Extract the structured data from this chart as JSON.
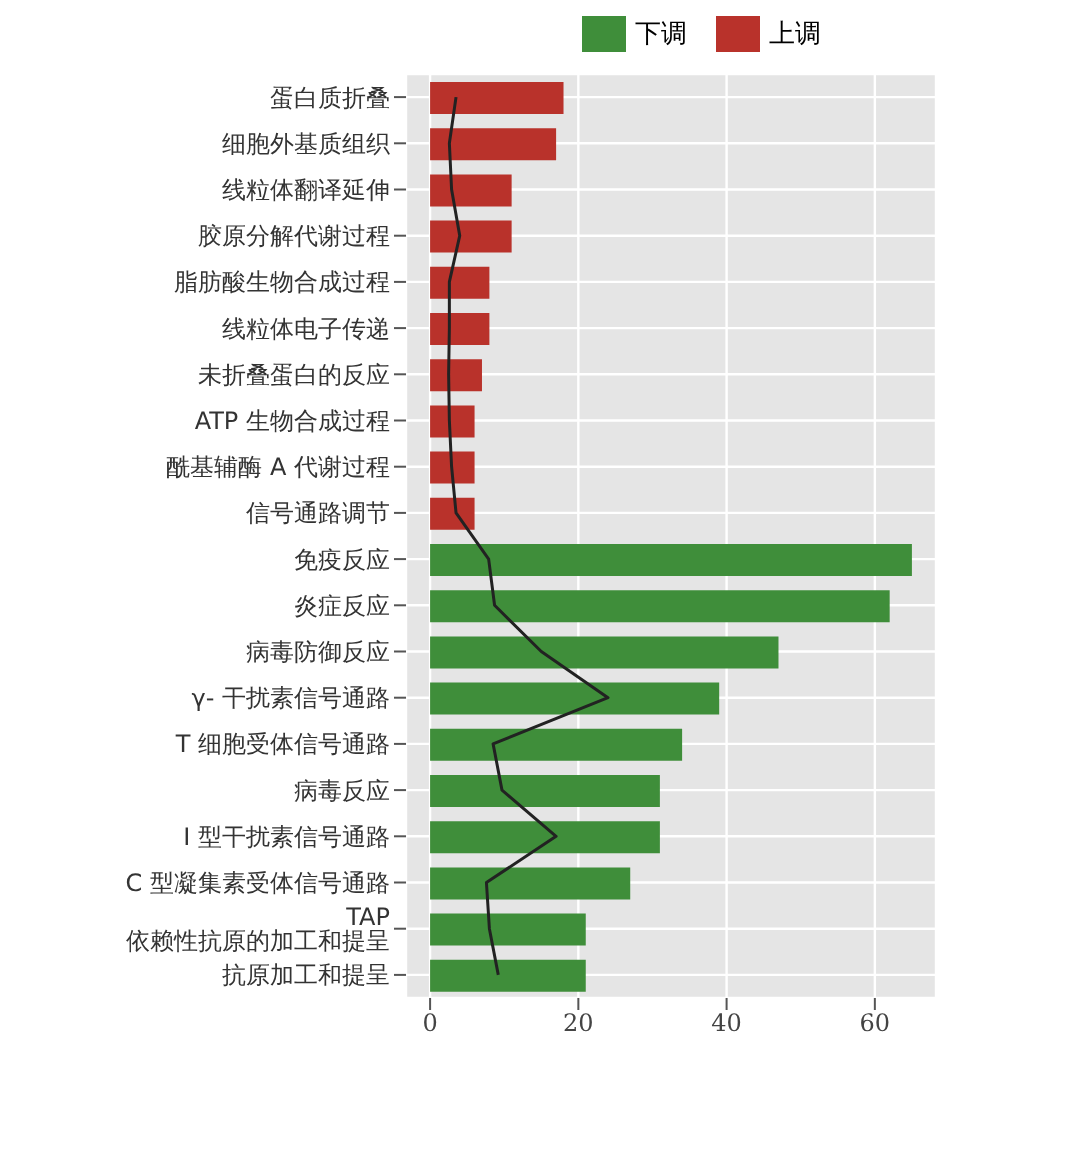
{
  "chart_data": {
    "type": "bar",
    "orientation": "horizontal",
    "categories": [
      "蛋白质折叠",
      "细胞外基质组织",
      "线粒体翻译延伸",
      "胶原分解代谢过程",
      "脂肪酸生物合成过程",
      "线粒体电子传递",
      "未折叠蛋白的反应",
      "ATP 生物合成过程",
      "酰基辅酶 A 代谢过程",
      "信号通路调节",
      "免疫反应",
      "炎症反应",
      "病毒防御反应",
      "γ- 干扰素信号通路",
      "T 细胞受体信号通路",
      "病毒反应",
      "I 型干扰素信号通路",
      "C 型凝集素受体信号通路",
      "TAP 依赖性抗原的加工和提呈",
      "抗原加工和提呈"
    ],
    "series": [
      {
        "name": "下调",
        "color": "#3f8e3a",
        "values": [
          null,
          null,
          null,
          null,
          null,
          null,
          null,
          null,
          null,
          null,
          65,
          62,
          47,
          39,
          34,
          31,
          31,
          27,
          21,
          21
        ]
      },
      {
        "name": "上调",
        "color": "#b9322b",
        "values": [
          18,
          17,
          11,
          11,
          8,
          8,
          7,
          6,
          6,
          6,
          null,
          null,
          null,
          null,
          null,
          null,
          null,
          null,
          null,
          null
        ]
      },
      {
        "type": "line",
        "color": "#222222",
        "values": [
          3.5,
          2.6,
          2.9,
          4,
          2.6,
          2.6,
          2.5,
          2.6,
          2.9,
          3.5,
          7.9,
          8.7,
          15,
          24,
          8.5,
          9.7,
          17,
          7.6,
          8,
          9.2
        ]
      }
    ],
    "xlim": [
      -3.25,
      68.25
    ],
    "xticks": [
      0,
      20,
      40,
      60
    ],
    "grid": true,
    "legend": "top",
    "marker": "none",
    "line_style": "solid"
  }
}
